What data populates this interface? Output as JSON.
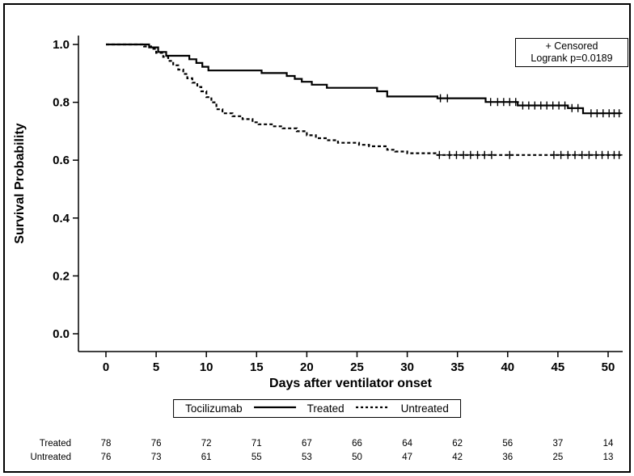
{
  "figure": {
    "inset_legend": {
      "censored_label": "+ Censored",
      "logrank_label": "Logrank p=0.0189"
    },
    "legend": {
      "title": "Tocilizumab"
    },
    "colors": {
      "line": "#000000",
      "background": "#ffffff"
    }
  },
  "chart_data": {
    "type": "line",
    "subtype": "kaplan-meier-step",
    "title": "",
    "xlabel": "Days after ventilator onset",
    "ylabel": "Survival Probability",
    "xlim": [
      0,
      51
    ],
    "ylim": [
      0.0,
      1.0
    ],
    "x_ticks": [
      0,
      5,
      10,
      15,
      20,
      25,
      30,
      35,
      40,
      45,
      50
    ],
    "y_ticks": [
      0.0,
      0.2,
      0.4,
      0.6,
      0.8,
      1.0
    ],
    "grid": false,
    "legend_position": "bottom",
    "annotations": [
      "+ Censored",
      "Logrank p=0.0189"
    ],
    "series": [
      {
        "name": "Treated",
        "line": "solid",
        "steps": [
          [
            0,
            1.0
          ],
          [
            4.3,
            0.99
          ],
          [
            5.2,
            0.974
          ],
          [
            6.0,
            0.961
          ],
          [
            8.3,
            0.949
          ],
          [
            9.0,
            0.936
          ],
          [
            9.6,
            0.923
          ],
          [
            10.2,
            0.91
          ],
          [
            15.5,
            0.901
          ],
          [
            18.0,
            0.891
          ],
          [
            18.8,
            0.881
          ],
          [
            19.5,
            0.871
          ],
          [
            20.5,
            0.861
          ],
          [
            22.0,
            0.85
          ],
          [
            27.0,
            0.838
          ],
          [
            28.0,
            0.82
          ],
          [
            33.0,
            0.814
          ],
          [
            37.8,
            0.801
          ],
          [
            41.0,
            0.789
          ],
          [
            46.0,
            0.78
          ],
          [
            47.5,
            0.762
          ]
        ],
        "censor_marks": [
          [
            33.3,
            0.814
          ],
          [
            34.0,
            0.814
          ],
          [
            38.3,
            0.801
          ],
          [
            39.0,
            0.801
          ],
          [
            39.6,
            0.801
          ],
          [
            40.2,
            0.801
          ],
          [
            40.8,
            0.801
          ],
          [
            41.5,
            0.789
          ],
          [
            42.1,
            0.789
          ],
          [
            42.7,
            0.789
          ],
          [
            43.3,
            0.789
          ],
          [
            43.9,
            0.789
          ],
          [
            44.5,
            0.789
          ],
          [
            45.1,
            0.789
          ],
          [
            45.7,
            0.789
          ],
          [
            46.4,
            0.78
          ],
          [
            47.0,
            0.78
          ],
          [
            48.3,
            0.762
          ],
          [
            48.9,
            0.762
          ],
          [
            49.5,
            0.762
          ],
          [
            50.1,
            0.762
          ],
          [
            50.6,
            0.762
          ],
          [
            51.1,
            0.762
          ]
        ]
      },
      {
        "name": "Untreated",
        "line": "dashed",
        "steps": [
          [
            0,
            1.0
          ],
          [
            3.8,
            0.993
          ],
          [
            4.5,
            0.985
          ],
          [
            5.0,
            0.971
          ],
          [
            5.7,
            0.957
          ],
          [
            6.2,
            0.943
          ],
          [
            6.7,
            0.928
          ],
          [
            7.2,
            0.913
          ],
          [
            7.7,
            0.898
          ],
          [
            8.1,
            0.883
          ],
          [
            8.6,
            0.868
          ],
          [
            9.1,
            0.853
          ],
          [
            9.5,
            0.838
          ],
          [
            10.0,
            0.818
          ],
          [
            10.5,
            0.8
          ],
          [
            11.0,
            0.776
          ],
          [
            11.6,
            0.762
          ],
          [
            12.6,
            0.752
          ],
          [
            13.6,
            0.742
          ],
          [
            14.6,
            0.731
          ],
          [
            15.2,
            0.724
          ],
          [
            16.6,
            0.717
          ],
          [
            17.6,
            0.71
          ],
          [
            19.0,
            0.7
          ],
          [
            20.0,
            0.686
          ],
          [
            20.9,
            0.676
          ],
          [
            22.0,
            0.669
          ],
          [
            23.1,
            0.66
          ],
          [
            25.2,
            0.653
          ],
          [
            26.2,
            0.648
          ],
          [
            28.0,
            0.636
          ],
          [
            28.8,
            0.63
          ],
          [
            30.0,
            0.624
          ],
          [
            32.8,
            0.618
          ]
        ],
        "censor_marks": [
          [
            33.2,
            0.618
          ],
          [
            34.2,
            0.618
          ],
          [
            34.9,
            0.618
          ],
          [
            35.6,
            0.618
          ],
          [
            36.3,
            0.618
          ],
          [
            37.0,
            0.618
          ],
          [
            37.7,
            0.618
          ],
          [
            38.4,
            0.618
          ],
          [
            40.2,
            0.618
          ],
          [
            44.6,
            0.618
          ],
          [
            45.3,
            0.618
          ],
          [
            46.0,
            0.618
          ],
          [
            46.7,
            0.618
          ],
          [
            47.4,
            0.618
          ],
          [
            48.1,
            0.618
          ],
          [
            48.8,
            0.618
          ],
          [
            49.4,
            0.618
          ],
          [
            50.0,
            0.618
          ],
          [
            50.6,
            0.618
          ],
          [
            51.1,
            0.618
          ]
        ]
      }
    ],
    "at_risk": {
      "times": [
        0,
        5,
        10,
        15,
        20,
        25,
        30,
        35,
        40,
        45,
        50
      ],
      "rows": [
        {
          "label": "Treated",
          "counts": [
            78,
            76,
            72,
            71,
            67,
            66,
            64,
            62,
            56,
            37,
            14
          ]
        },
        {
          "label": "Untreated",
          "counts": [
            76,
            73,
            61,
            55,
            53,
            50,
            47,
            42,
            36,
            25,
            13
          ]
        }
      ]
    }
  }
}
